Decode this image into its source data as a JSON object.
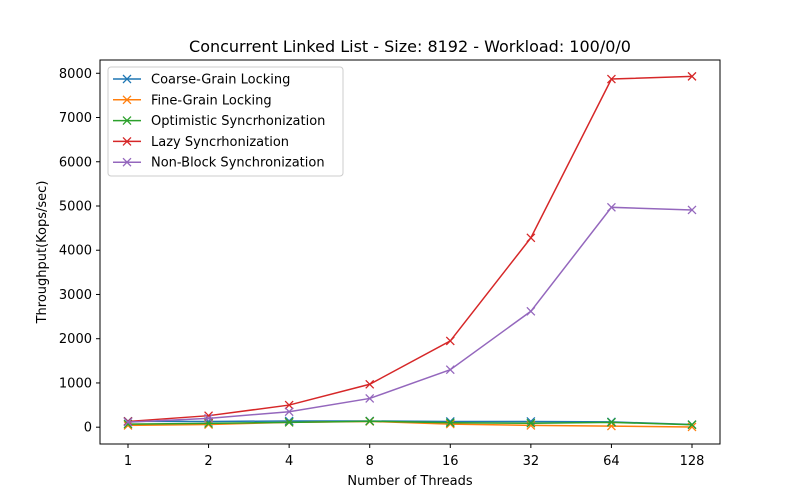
{
  "chart_data": {
    "type": "line",
    "title": "Concurrent Linked List - Size: 8192 - Workload: 100/0/0",
    "xlabel": "Number of Threads",
    "ylabel": "Throughput(Kops/sec)",
    "categories": [
      "1",
      "2",
      "4",
      "8",
      "16",
      "32",
      "64",
      "128"
    ],
    "ylim": [
      -380,
      8300
    ],
    "yticks": [
      0,
      1000,
      2000,
      3000,
      4000,
      5000,
      6000,
      7000,
      8000
    ],
    "grid": false,
    "legend_position": "upper-left",
    "series": [
      {
        "name": "Coarse-Grain Locking",
        "color": "#1f77b4",
        "marker": "x",
        "values": [
          135,
          130,
          140,
          140,
          130,
          130,
          120,
          60
        ]
      },
      {
        "name": "Fine-Grain Locking",
        "color": "#ff7f0e",
        "marker": "x",
        "values": [
          40,
          60,
          110,
          130,
          70,
          40,
          25,
          5
        ]
      },
      {
        "name": "Optimistic Syncrhonization",
        "color": "#2ca02c",
        "marker": "x",
        "values": [
          70,
          85,
          110,
          135,
          100,
          90,
          110,
          55
        ]
      },
      {
        "name": "Lazy Syncrhonization",
        "color": "#d62728",
        "marker": "x",
        "values": [
          130,
          260,
          500,
          970,
          1950,
          4280,
          7870,
          7930
        ]
      },
      {
        "name": "Non-Block Synchronization",
        "color": "#9467bd",
        "marker": "x",
        "values": [
          115,
          200,
          350,
          650,
          1300,
          2620,
          4970,
          4910
        ]
      }
    ]
  }
}
